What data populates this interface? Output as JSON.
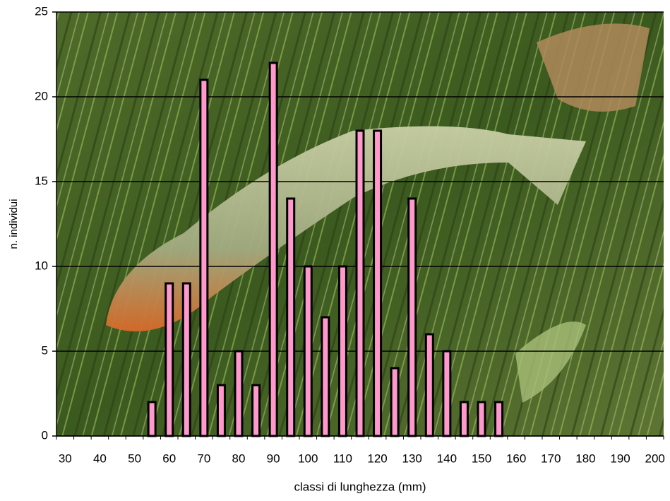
{
  "chart_data": {
    "type": "bar",
    "categories": [
      "30",
      null,
      "40",
      null,
      "50",
      null,
      "60",
      null,
      "70",
      null,
      "80",
      null,
      "90",
      null,
      "100",
      null,
      "110",
      null,
      "120",
      null,
      "130",
      null,
      "140",
      null,
      "150",
      null,
      "160",
      null,
      "170",
      null,
      "180",
      null,
      "190",
      null,
      "200"
    ],
    "values": [
      0,
      0,
      0,
      0,
      0,
      2,
      9,
      9,
      21,
      3,
      5,
      3,
      22,
      14,
      10,
      7,
      10,
      18,
      18,
      4,
      14,
      6,
      5,
      2,
      2,
      2,
      0,
      0,
      0,
      0,
      0,
      0,
      0,
      0,
      0
    ],
    "color": "#ff99cc",
    "x_label": "classi di lunghezza (mm)",
    "y_label": "n. individui",
    "ylim": [
      0,
      25
    ],
    "yticks": [
      0,
      5,
      10,
      15,
      20,
      25
    ],
    "grid": true
  }
}
